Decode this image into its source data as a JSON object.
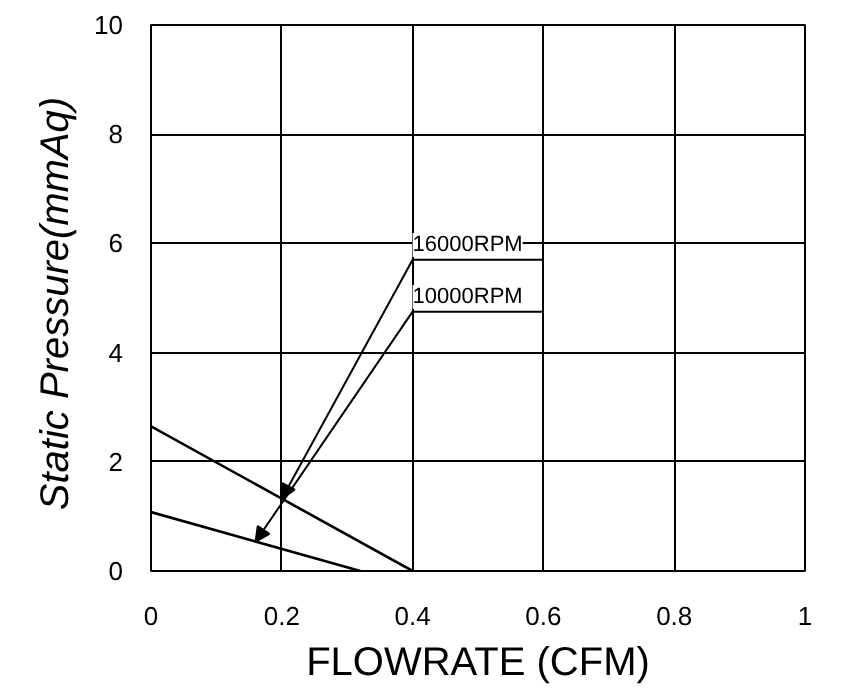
{
  "chart_data": {
    "type": "line",
    "xlabel": "FLOWRATE (CFM)",
    "ylabel": "Static  Pressure(mmAq)",
    "xlim": [
      0,
      1
    ],
    "ylim": [
      0,
      10
    ],
    "xticks": [
      0,
      0.2,
      0.4,
      0.6,
      0.8,
      1
    ],
    "yticks": [
      0,
      2,
      4,
      6,
      8,
      10
    ],
    "grid": true,
    "marker": "none",
    "line_style": "solid",
    "series": [
      {
        "name": "16000RPM",
        "color": "#000000",
        "x": [
          0,
          0.4
        ],
        "values": [
          2.65,
          0
        ]
      },
      {
        "name": "10000RPM",
        "color": "#000000",
        "x": [
          0,
          0.32
        ],
        "values": [
          1.08,
          0
        ]
      }
    ]
  }
}
